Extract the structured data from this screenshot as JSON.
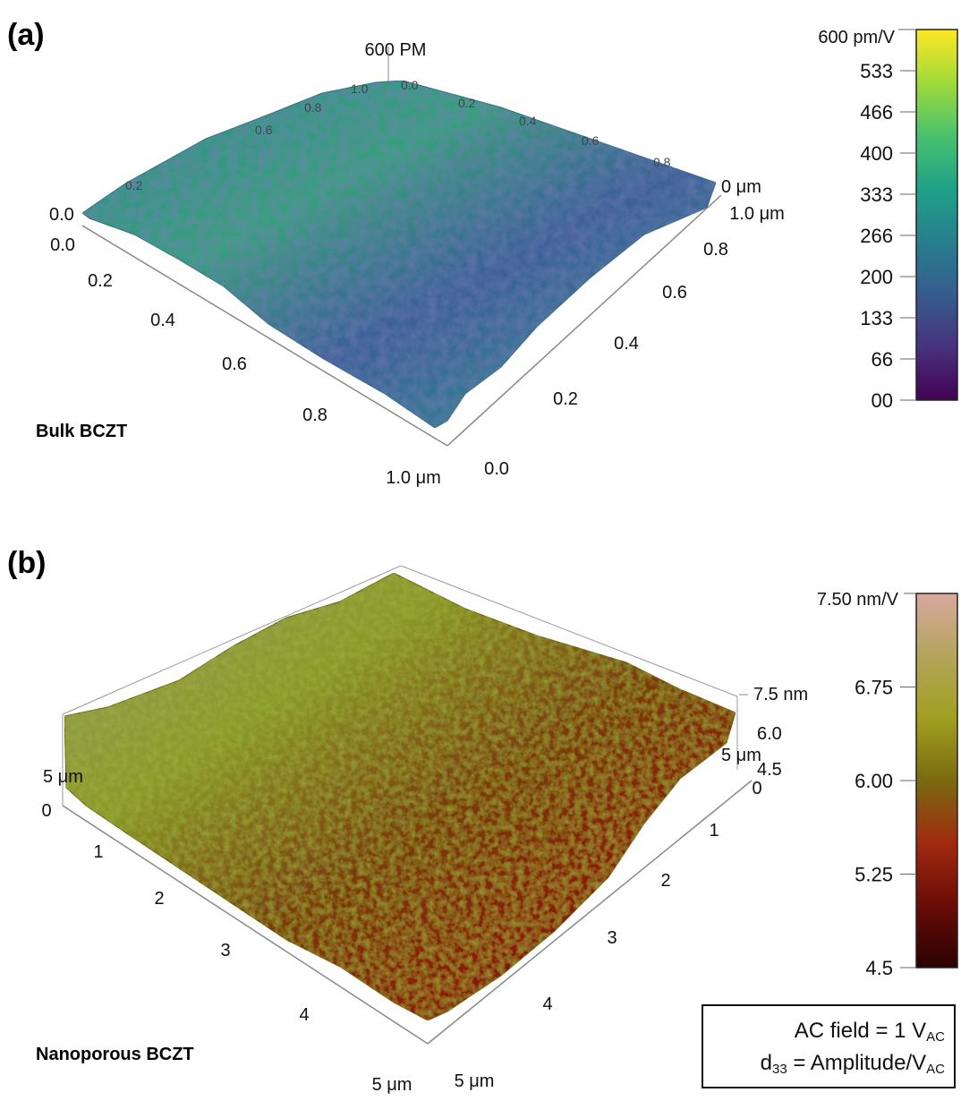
{
  "panel_a": {
    "label": "(a)",
    "top_label": "600 PM",
    "sample_name": "Bulk BCZT",
    "left_axis_ticks": [
      "0.0",
      "0.2",
      "0.4",
      "0.6",
      "0.8",
      "1.0 μm"
    ],
    "right_axis_ticks": [
      "0.0",
      "0.2",
      "0.4",
      "0.6",
      "0.8",
      "1.0 μm"
    ],
    "back_ticks": [
      "0.0",
      "0.2",
      "0.4",
      "0.6",
      "0.8",
      "1.0",
      "0.0",
      "0.2",
      "0.4",
      "0.6",
      "0.8"
    ],
    "z_tick": "0 μm",
    "colorbar": {
      "top_label": "600 pm/V",
      "ticks": [
        "533",
        "466",
        "400",
        "333",
        "266",
        "200",
        "133",
        "66",
        "00"
      ],
      "colors": [
        "#fde725",
        "#a0da39",
        "#4ac16d",
        "#1fa187",
        "#277f8e",
        "#365c8d",
        "#46327e",
        "#440154"
      ]
    }
  },
  "panel_b": {
    "label": "(b)",
    "sample_name": "Nanoporous BCZT",
    "left_axis_ticks": [
      "0",
      "1",
      "2",
      "3",
      "4",
      "5 μm"
    ],
    "right_axis_ticks": [
      "0",
      "1",
      "2",
      "3",
      "4",
      "5 μm"
    ],
    "back_left_tick": "5 μm",
    "right_top_tick": "5 μm",
    "z_ticks": [
      "7.5 nm",
      "6.0",
      "4.5"
    ],
    "colorbar": {
      "top_label": "7.50 nm/V",
      "ticks": [
        "6.75",
        "6.00",
        "5.25",
        "4.5"
      ],
      "colors": [
        "#d8a8a0",
        "#b4a45c",
        "#a0a020",
        "#7a6a10",
        "#a02a10",
        "#6a0c06",
        "#2a0202"
      ]
    }
  },
  "annotation": {
    "line1_main": "AC field = 1 V",
    "line1_sub": "AC",
    "line2_pre": "d",
    "line2_pre_sub": "33",
    "line2_main": " = Amplitude/V",
    "line2_sub": "AC"
  }
}
